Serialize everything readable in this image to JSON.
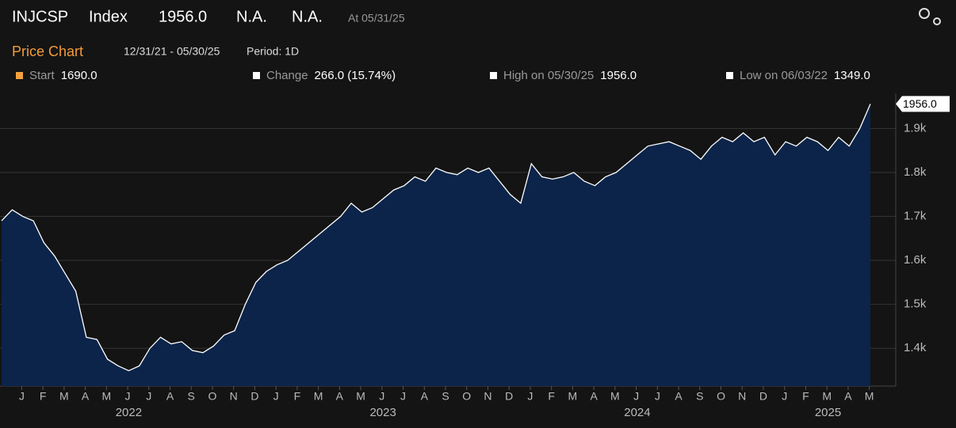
{
  "header": {
    "ticker": "INJCSP",
    "kind": "Index",
    "price": "1956.0",
    "change": "N.A.",
    "pct": "N.A.",
    "as_of": "At 05/31/25"
  },
  "subheader": {
    "title": "Price Chart",
    "range": "12/31/21 - 05/30/25",
    "period": "Period: 1D"
  },
  "stats": [
    {
      "label": "Start",
      "value": "1690.0",
      "color": "#f4a040"
    },
    {
      "label": "Change",
      "value": "266.0 (15.74%)",
      "color": "#ffffff"
    },
    {
      "label": "High on 05/30/25",
      "value": "1956.0",
      "color": "#ffffff"
    },
    {
      "label": "Low on 06/03/22",
      "value": "1349.0",
      "color": "#ffffff"
    }
  ],
  "chart_data": {
    "type": "area",
    "line_color": "#ffffff",
    "fill_color": "#0c2449",
    "grid": true,
    "categories": [
      null,
      "J",
      null,
      "F",
      null,
      "M",
      null,
      "A",
      null,
      "M",
      null,
      "J",
      null,
      "J",
      null,
      "A",
      null,
      "S",
      null,
      "O",
      null,
      "N",
      null,
      "D",
      null,
      "J",
      null,
      "F",
      null,
      "M",
      null,
      "A",
      null,
      "M",
      null,
      "J",
      null,
      "J",
      null,
      "A",
      null,
      "S",
      null,
      "O",
      null,
      "N",
      null,
      "D",
      null,
      "J",
      null,
      "F",
      null,
      "M",
      null,
      "A",
      null,
      "M",
      null,
      "J",
      null,
      "J",
      null,
      "A",
      null,
      "S",
      null,
      "O",
      null,
      "N",
      null,
      "D",
      null,
      "J",
      null,
      "F",
      null,
      "M",
      null,
      "A",
      null,
      "M",
      null
    ],
    "year_ticks": [
      {
        "value": 12,
        "label": "2022"
      },
      {
        "value": 36,
        "label": "2023"
      },
      {
        "value": 60,
        "label": "2024"
      },
      {
        "value": 78,
        "label": "2025"
      }
    ],
    "values": [
      1690,
      1715,
      1700,
      1690,
      1640,
      1610,
      1570,
      1530,
      1425,
      1420,
      1375,
      1360,
      1349,
      1360,
      1400,
      1425,
      1410,
      1415,
      1395,
      1390,
      1405,
      1430,
      1440,
      1500,
      1550,
      1575,
      1590,
      1600,
      1620,
      1640,
      1660,
      1680,
      1700,
      1730,
      1710,
      1720,
      1740,
      1760,
      1770,
      1790,
      1780,
      1810,
      1800,
      1795,
      1810,
      1800,
      1810,
      1780,
      1750,
      1730,
      1820,
      1790,
      1785,
      1790,
      1800,
      1780,
      1770,
      1790,
      1800,
      1820,
      1840,
      1860,
      1865,
      1870,
      1860,
      1850,
      1830,
      1860,
      1880,
      1870,
      1890,
      1870,
      1880,
      1840,
      1870,
      1860,
      1880,
      1870,
      1850,
      1880,
      1860,
      1900,
      1956
    ],
    "ylim": [
      1314,
      1980
    ],
    "yticks": [
      {
        "value": 1400,
        "label": "1.4k"
      },
      {
        "value": 1500,
        "label": "1.5k"
      },
      {
        "value": 1600,
        "label": "1.6k"
      },
      {
        "value": 1700,
        "label": "1.7k"
      },
      {
        "value": 1800,
        "label": "1.8k"
      },
      {
        "value": 1900,
        "label": "1.9k"
      }
    ]
  }
}
